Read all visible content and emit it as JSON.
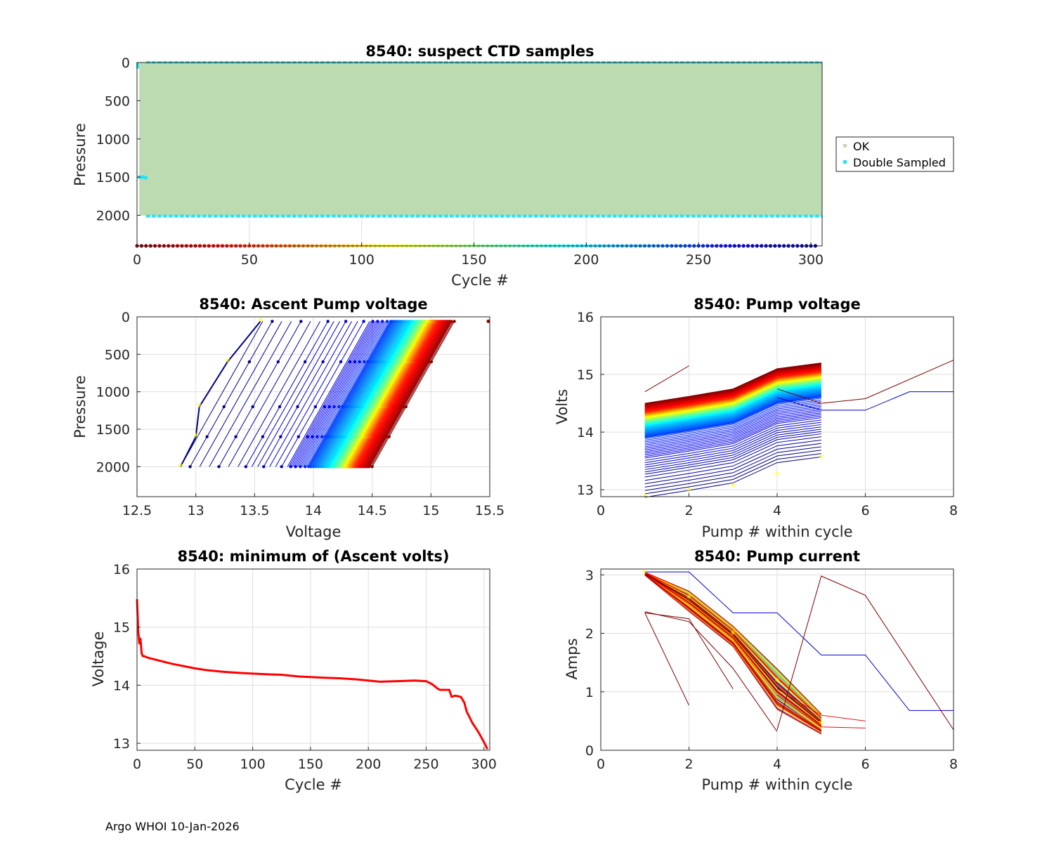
{
  "footer": "Argo WHOI 10-Jan-2026",
  "colors": {
    "ok": "#bcdbb1",
    "double": "#1fe6f0",
    "axis": "#262626",
    "grid": "#dedede",
    "min_line": "#ff0000",
    "marker": "#ffff00"
  },
  "chart_data": [
    {
      "id": "ctd",
      "type": "scatter",
      "title": "8540: suspect CTD samples",
      "xlabel": "Cycle #",
      "ylabel": "Pressure",
      "xlim": [
        0,
        305
      ],
      "ylim": [
        0,
        2400
      ],
      "y_reversed": true,
      "xticks": [
        0,
        50,
        100,
        150,
        200,
        250,
        300
      ],
      "yticks": [
        0,
        500,
        1000,
        1500,
        2000
      ],
      "legend": {
        "placement": "outside-right",
        "entries": [
          "OK",
          "Double Sampled"
        ]
      },
      "ok_region": {
        "x": [
          0,
          305
        ],
        "y": [
          0,
          2000
        ]
      },
      "double_sampled": {
        "pressure_rows": [
          0,
          2010
        ],
        "extra_points": [
          [
            1,
            1500
          ],
          [
            2,
            1500
          ],
          [
            3,
            1500
          ],
          [
            4,
            1510
          ]
        ]
      },
      "cycle_colorbar": {
        "y": 2400,
        "x": [
          0,
          305
        ],
        "colormap": "jet-reversed"
      }
    },
    {
      "id": "ascent",
      "type": "line",
      "title": "8540: Ascent Pump voltage",
      "xlabel": "Voltage",
      "ylabel": "Pressure",
      "xlim": [
        12.5,
        15.5
      ],
      "ylim": [
        0,
        2400
      ],
      "y_reversed": true,
      "xticks": [
        12.5,
        13,
        13.5,
        14,
        14.5,
        15,
        15.5
      ],
      "xtick_labels": [
        "12.5",
        "13",
        "13.5",
        "14",
        "14.5",
        "15",
        "15.5"
      ],
      "yticks": [
        0,
        500,
        1000,
        1500,
        2000
      ],
      "profile_pressures": [
        2000,
        1600,
        1200,
        600,
        60
      ],
      "profiles_at_2000dbar": {
        "cycles": [
          1,
          5,
          50,
          100,
          150,
          200,
          250,
          275,
          290,
          303
        ],
        "voltage": [
          14.5,
          14.48,
          14.35,
          14.28,
          14.22,
          14.12,
          13.95,
          13.78,
          13.4,
          12.87
        ]
      },
      "slope_volts_per_2000dbar": 0.72,
      "highlight_last_cycle": {
        "voltage": [
          12.87,
          13.0,
          13.03,
          13.27,
          13.55
        ],
        "pressure": [
          2000,
          1600,
          1200,
          600,
          60
        ]
      },
      "outlier": {
        "voltage": 15.5,
        "pressure": 60
      }
    },
    {
      "id": "pumpv",
      "type": "line",
      "title": "8540: Pump voltage",
      "xlabel": "Pump # within cycle",
      "ylabel": "Volts",
      "xlim": [
        0,
        8
      ],
      "ylim": [
        12.88,
        16
      ],
      "xticks": [
        0,
        2,
        4,
        6,
        8
      ],
      "yticks": [
        13,
        14,
        15,
        16
      ],
      "pumps": [
        1,
        2,
        3,
        4,
        5
      ],
      "per_cycle_at_pump1": {
        "cycles": [
          1,
          50,
          100,
          150,
          200,
          250,
          275,
          290,
          303
        ],
        "volts": [
          14.5,
          14.35,
          14.28,
          14.2,
          14.1,
          13.9,
          13.55,
          13.25,
          12.87
        ]
      },
      "rise_by_pump": [
        0,
        0.12,
        0.25,
        0.6,
        0.7
      ],
      "last_cycle": {
        "pump": [
          1,
          2,
          3,
          4,
          5
        ],
        "volts": [
          12.87,
          12.98,
          13.05,
          13.25,
          13.55
        ]
      },
      "extra_lines": [
        {
          "pump": [
            1,
            2
          ],
          "volts": [
            14.7,
            15.15
          ]
        },
        {
          "pump": [
            4,
            5,
            6,
            8
          ],
          "volts": [
            14.75,
            14.5,
            14.58,
            15.25
          ]
        },
        {
          "pump": [
            4,
            5,
            6,
            7,
            8
          ],
          "volts": [
            14.6,
            14.38,
            14.38,
            14.7,
            14.7
          ]
        }
      ]
    },
    {
      "id": "minv",
      "type": "line",
      "title": "8540: minimum of (Ascent volts)",
      "xlabel": "Cycle #",
      "ylabel": "Voltage",
      "xlim": [
        0,
        305
      ],
      "ylim": [
        12.88,
        16
      ],
      "xticks": [
        0,
        50,
        100,
        150,
        200,
        250,
        300
      ],
      "yticks": [
        13,
        14,
        15,
        16
      ],
      "x": [
        0,
        1,
        2,
        3,
        4,
        5,
        6,
        10,
        20,
        30,
        40,
        50,
        60,
        75,
        90,
        100,
        110,
        125,
        140,
        150,
        160,
        175,
        190,
        200,
        210,
        225,
        240,
        250,
        255,
        260,
        262,
        270,
        272,
        275,
        280,
        283,
        285,
        290,
        295,
        300,
        303
      ],
      "y": [
        15.48,
        14.95,
        14.72,
        14.8,
        14.55,
        14.5,
        14.5,
        14.47,
        14.42,
        14.37,
        14.33,
        14.29,
        14.26,
        14.23,
        14.21,
        14.2,
        14.19,
        14.18,
        14.15,
        14.14,
        14.13,
        14.12,
        14.1,
        14.08,
        14.06,
        14.07,
        14.08,
        14.07,
        14.02,
        13.94,
        13.92,
        13.92,
        13.8,
        13.82,
        13.8,
        13.7,
        13.55,
        13.35,
        13.2,
        13.02,
        12.9
      ]
    },
    {
      "id": "pumpc",
      "type": "line",
      "title": "8540: Pump current",
      "xlabel": "Pump # within cycle",
      "ylabel": "Amps",
      "xlim": [
        0,
        8
      ],
      "ylim": [
        0,
        3.1
      ],
      "xticks": [
        0,
        2,
        4,
        6,
        8
      ],
      "yticks": [
        0,
        1,
        2,
        3
      ],
      "typical": {
        "pump": [
          1,
          2,
          3,
          4,
          5
        ],
        "amps": [
          3.02,
          2.55,
          1.95,
          1.05,
          0.45
        ]
      },
      "markers": {
        "pump": [
          1,
          2,
          3,
          4,
          5
        ],
        "amps": [
          3.03,
          2.6,
          1.98,
          1.18,
          0.45
        ]
      },
      "extra_lines": [
        {
          "pump": [
            1,
            2
          ],
          "amps": [
            2.35,
            0.77
          ]
        },
        {
          "pump": [
            1,
            2,
            3,
            4
          ],
          "amps": [
            2.37,
            2.2,
            1.4,
            0.32
          ]
        },
        {
          "pump": [
            1,
            2,
            3
          ],
          "amps": [
            2.35,
            2.25,
            1.05
          ]
        },
        {
          "pump": [
            1,
            2,
            3,
            4,
            5,
            6,
            7,
            8
          ],
          "amps": [
            3.05,
            3.05,
            2.35,
            2.35,
            1.63,
            1.63,
            0.68,
            0.68
          ]
        },
        {
          "pump": [
            4,
            5,
            6,
            8
          ],
          "amps": [
            0.35,
            2.98,
            2.65,
            0.35
          ]
        },
        {
          "pump": [
            4,
            5,
            6
          ],
          "amps": [
            1.05,
            0.6,
            0.5
          ]
        },
        {
          "pump": [
            4,
            5,
            6
          ],
          "amps": [
            0.95,
            0.4,
            0.38
          ]
        }
      ]
    }
  ]
}
